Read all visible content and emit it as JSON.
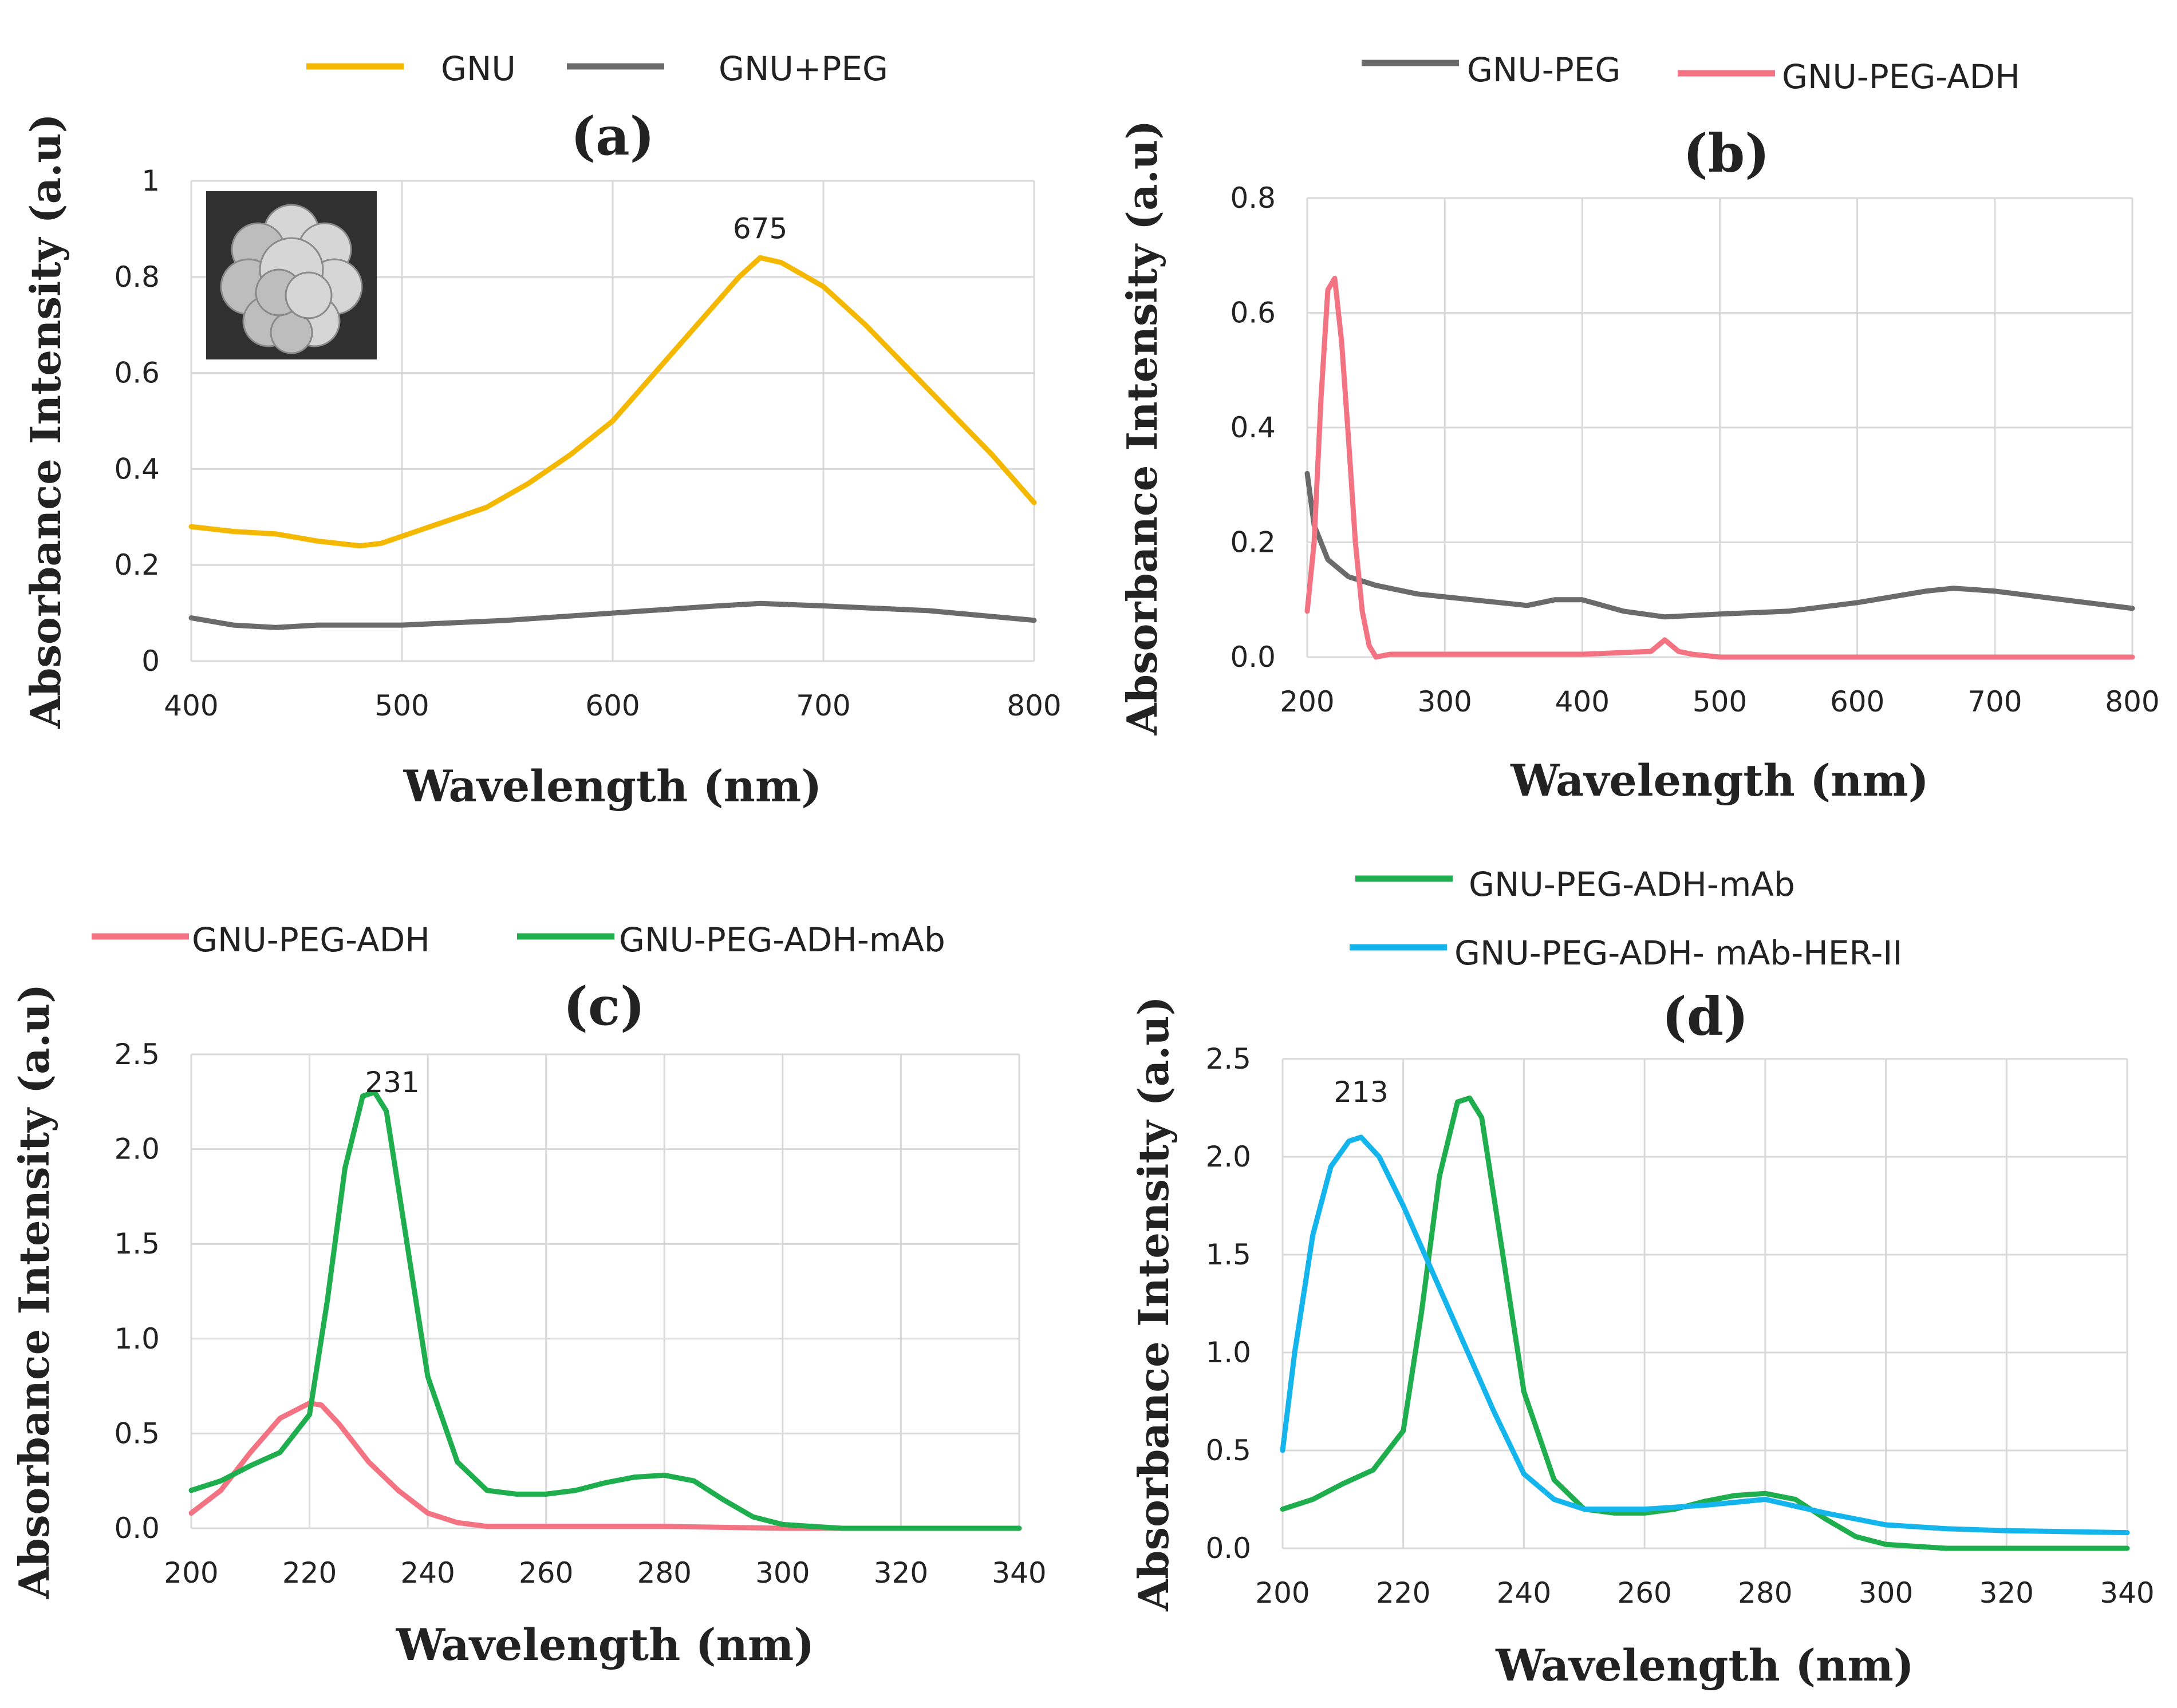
{
  "figure": {
    "panels": [
      "a",
      "b",
      "c",
      "d"
    ]
  },
  "chart_data": [
    {
      "id": "a",
      "type": "line",
      "title": "(a)",
      "xlabel": "Wavelength (nm)",
      "ylabel": "Absorbance Intensity (a.u)",
      "xlim": [
        400,
        800
      ],
      "ylim": [
        0,
        1
      ],
      "xticks": [
        400,
        500,
        600,
        700,
        800
      ],
      "yticks": [
        0,
        0.2,
        0.4,
        0.6,
        0.8,
        1
      ],
      "ytick_labels": [
        "0",
        "0.2",
        "0.4",
        "0.6",
        "0.8",
        "1"
      ],
      "grid": true,
      "legend_position": "top",
      "annotations": [
        {
          "text": "675",
          "x": 670,
          "y": 0.88
        }
      ],
      "inset_image": "gold-nanourchin-sem",
      "series": [
        {
          "name": "GNU",
          "color": "#f5b800",
          "x": [
            400,
            420,
            440,
            460,
            480,
            490,
            500,
            520,
            540,
            560,
            580,
            600,
            620,
            640,
            660,
            670,
            680,
            700,
            720,
            740,
            760,
            780,
            800
          ],
          "y": [
            0.28,
            0.27,
            0.265,
            0.25,
            0.24,
            0.245,
            0.26,
            0.29,
            0.32,
            0.37,
            0.43,
            0.5,
            0.6,
            0.7,
            0.8,
            0.84,
            0.83,
            0.78,
            0.7,
            0.61,
            0.52,
            0.43,
            0.33
          ]
        },
        {
          "name": "GNU+PEG",
          "color": "#6b6b6b",
          "x": [
            400,
            420,
            440,
            460,
            480,
            500,
            550,
            600,
            650,
            670,
            700,
            750,
            800
          ],
          "y": [
            0.09,
            0.075,
            0.07,
            0.075,
            0.075,
            0.075,
            0.085,
            0.1,
            0.115,
            0.12,
            0.115,
            0.105,
            0.085
          ]
        }
      ]
    },
    {
      "id": "b",
      "type": "line",
      "title": "(b)",
      "xlabel": "Wavelength (nm)",
      "ylabel": "Absorbance Intensity (a.u)",
      "xlim": [
        200,
        800
      ],
      "ylim": [
        0,
        0.8
      ],
      "xticks": [
        200,
        300,
        400,
        500,
        600,
        700,
        800
      ],
      "yticks": [
        0,
        0.2,
        0.4,
        0.6,
        0.8
      ],
      "ytick_labels": [
        "0.0",
        "0.2",
        "0.4",
        "0.6",
        "0.8"
      ],
      "grid": true,
      "legend_position": "top",
      "series": [
        {
          "name": "GNU-PEG",
          "color": "#6b6b6b",
          "x": [
            200,
            205,
            215,
            230,
            250,
            280,
            320,
            360,
            380,
            400,
            430,
            460,
            500,
            550,
            600,
            650,
            670,
            700,
            750,
            800
          ],
          "y": [
            0.32,
            0.23,
            0.17,
            0.14,
            0.125,
            0.11,
            0.1,
            0.09,
            0.1,
            0.1,
            0.08,
            0.07,
            0.075,
            0.08,
            0.095,
            0.115,
            0.12,
            0.115,
            0.1,
            0.085
          ]
        },
        {
          "name": "GNU-PEG-ADH",
          "color": "#f47383",
          "x": [
            200,
            205,
            210,
            215,
            220,
            225,
            230,
            235,
            240,
            245,
            250,
            260,
            300,
            400,
            450,
            460,
            470,
            480,
            500,
            600,
            700,
            800
          ],
          "y": [
            0.08,
            0.2,
            0.45,
            0.64,
            0.66,
            0.55,
            0.38,
            0.2,
            0.08,
            0.02,
            0.0,
            0.005,
            0.005,
            0.005,
            0.01,
            0.03,
            0.01,
            0.005,
            0.0,
            0.0,
            0.0,
            0.0
          ]
        }
      ]
    },
    {
      "id": "c",
      "type": "line",
      "title": "(c)",
      "xlabel": "Wavelength (nm)",
      "ylabel": "Absorbance Intensity (a.u)",
      "xlim": [
        200,
        340
      ],
      "ylim": [
        0,
        2.5
      ],
      "xticks": [
        200,
        220,
        240,
        260,
        280,
        300,
        320,
        340
      ],
      "yticks": [
        0,
        0.5,
        1,
        1.5,
        2,
        2.5
      ],
      "ytick_labels": [
        "0.0",
        "0.5",
        "1.0",
        "1.5",
        "2.0",
        "2.5"
      ],
      "grid": true,
      "legend_position": "top",
      "annotations": [
        {
          "text": "231",
          "x": 234,
          "y": 2.3
        }
      ],
      "series": [
        {
          "name": "GNU-PEG-ADH",
          "color": "#f47383",
          "x": [
            200,
            205,
            210,
            215,
            220,
            222,
            225,
            230,
            235,
            240,
            245,
            250,
            260,
            280,
            300,
            340
          ],
          "y": [
            0.08,
            0.2,
            0.4,
            0.58,
            0.66,
            0.65,
            0.55,
            0.35,
            0.2,
            0.08,
            0.03,
            0.01,
            0.01,
            0.01,
            0.0,
            0.0
          ]
        },
        {
          "name": "GNU-PEG-ADH-mAb",
          "color": "#1fae4d",
          "x": [
            200,
            205,
            210,
            215,
            220,
            223,
            226,
            229,
            231,
            233,
            236,
            240,
            245,
            250,
            255,
            260,
            265,
            270,
            275,
            280,
            285,
            290,
            295,
            300,
            310,
            320,
            340
          ],
          "y": [
            0.2,
            0.25,
            0.33,
            0.4,
            0.6,
            1.2,
            1.9,
            2.28,
            2.3,
            2.2,
            1.6,
            0.8,
            0.35,
            0.2,
            0.18,
            0.18,
            0.2,
            0.24,
            0.27,
            0.28,
            0.25,
            0.15,
            0.06,
            0.02,
            0.0,
            0.0,
            0.0
          ]
        }
      ]
    },
    {
      "id": "d",
      "type": "line",
      "title": "(d)",
      "xlabel": "Wavelength (nm)",
      "ylabel": "Absorbance Intensity (a.u)",
      "xlim": [
        200,
        340
      ],
      "ylim": [
        0,
        2.5
      ],
      "xticks": [
        200,
        220,
        240,
        260,
        280,
        300,
        320,
        340
      ],
      "yticks": [
        0,
        0.5,
        1,
        1.5,
        2,
        2.5
      ],
      "ytick_labels": [
        "0.0",
        "0.5",
        "1.0",
        "1.5",
        "2.0",
        "2.5"
      ],
      "grid": true,
      "legend_position": "top",
      "annotations": [
        {
          "text": "213",
          "x": 213,
          "y": 2.28
        }
      ],
      "series": [
        {
          "name": "GNU-PEG-ADH-mAb",
          "color": "#1fae4d",
          "x": [
            200,
            205,
            210,
            215,
            220,
            223,
            226,
            229,
            231,
            233,
            236,
            240,
            245,
            250,
            255,
            260,
            265,
            270,
            275,
            280,
            285,
            290,
            295,
            300,
            310,
            320,
            340
          ],
          "y": [
            0.2,
            0.25,
            0.33,
            0.4,
            0.6,
            1.2,
            1.9,
            2.28,
            2.3,
            2.2,
            1.6,
            0.8,
            0.35,
            0.2,
            0.18,
            0.18,
            0.2,
            0.24,
            0.27,
            0.28,
            0.25,
            0.15,
            0.06,
            0.02,
            0.0,
            0.0,
            0.0
          ]
        },
        {
          "name": "GNU-PEG-ADH- mAb-HER-II",
          "color": "#14b5ec",
          "x": [
            200,
            202,
            205,
            208,
            211,
            213,
            216,
            220,
            225,
            230,
            235,
            240,
            245,
            250,
            260,
            270,
            280,
            290,
            300,
            310,
            320,
            340
          ],
          "y": [
            0.5,
            1.0,
            1.6,
            1.95,
            2.08,
            2.1,
            2.0,
            1.75,
            1.4,
            1.05,
            0.7,
            0.38,
            0.25,
            0.2,
            0.2,
            0.22,
            0.25,
            0.18,
            0.12,
            0.1,
            0.09,
            0.08
          ]
        }
      ]
    }
  ]
}
